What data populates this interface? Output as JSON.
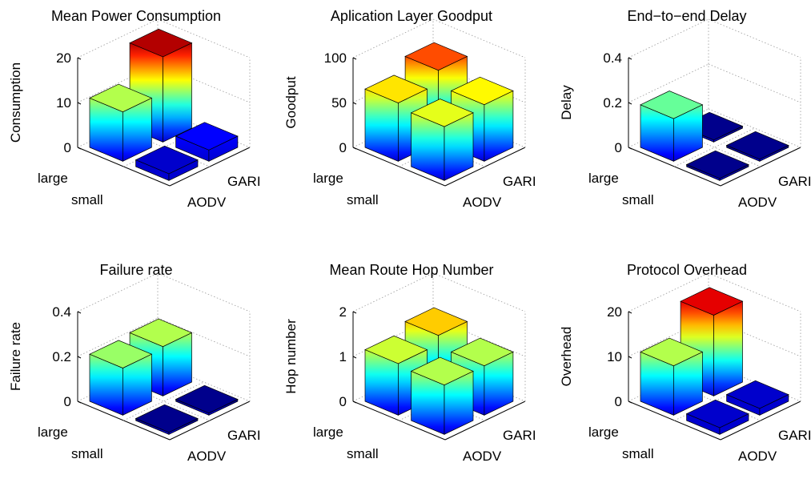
{
  "chart_data": [
    {
      "type": "bar",
      "title": "Mean Power Consumption",
      "zlabel": "Consumption",
      "zlim": [
        0,
        20
      ],
      "zticks": [
        0,
        10,
        20
      ],
      "rows": [
        "large",
        "small"
      ],
      "cols": [
        "AODV",
        "GARI"
      ],
      "values": [
        [
          11,
          19
        ],
        [
          1.5,
          2.5
        ]
      ],
      "colormap": "jet",
      "grid": "on"
    },
    {
      "type": "bar",
      "title": "Aplication Layer Goodput",
      "zlabel": "Goodput",
      "zlim": [
        0,
        100
      ],
      "zticks": [
        0,
        50,
        100
      ],
      "rows": [
        "large",
        "small"
      ],
      "cols": [
        "AODV",
        "GARI"
      ],
      "values": [
        [
          65,
          80
        ],
        [
          60,
          63
        ]
      ],
      "colormap": "jet",
      "grid": "on"
    },
    {
      "type": "bar",
      "title": "End−to−end Delay",
      "zlabel": "Delay",
      "zlim": [
        0,
        0.4
      ],
      "zticks": [
        0,
        0.2,
        0.4
      ],
      "rows": [
        "large",
        "small"
      ],
      "cols": [
        "AODV",
        "GARI"
      ],
      "values": [
        [
          0.19,
          0.005
        ],
        [
          0.005,
          0.005
        ]
      ],
      "colormap": "jet",
      "grid": "on"
    },
    {
      "type": "bar",
      "title": "Failure rate",
      "zlabel": "Failure rate",
      "zlim": [
        0,
        0.4
      ],
      "zticks": [
        0,
        0.2,
        0.4
      ],
      "rows": [
        "large",
        "small"
      ],
      "cols": [
        "AODV",
        "GARI"
      ],
      "values": [
        [
          0.21,
          0.22
        ],
        [
          0.005,
          0.005
        ]
      ],
      "colormap": "jet",
      "grid": "on"
    },
    {
      "type": "bar",
      "title": "Mean Route Hop Number",
      "zlabel": "Hop number",
      "zlim": [
        0,
        2
      ],
      "zticks": [
        0,
        1,
        2
      ],
      "rows": [
        "large",
        "small"
      ],
      "cols": [
        "AODV",
        "GARI"
      ],
      "values": [
        [
          1.15,
          1.35
        ],
        [
          1.1,
          1.1
        ]
      ],
      "colormap": "jet",
      "grid": "on"
    },
    {
      "type": "bar",
      "title": "Protocol Overhead",
      "zlabel": "Overhead",
      "zlim": [
        0,
        20
      ],
      "zticks": [
        0,
        10,
        20
      ],
      "rows": [
        "large",
        "small"
      ],
      "cols": [
        "AODV",
        "GARI"
      ],
      "values": [
        [
          11,
          18
        ],
        [
          1.5,
          1.5
        ]
      ],
      "colormap": "jet",
      "grid": "on"
    }
  ]
}
